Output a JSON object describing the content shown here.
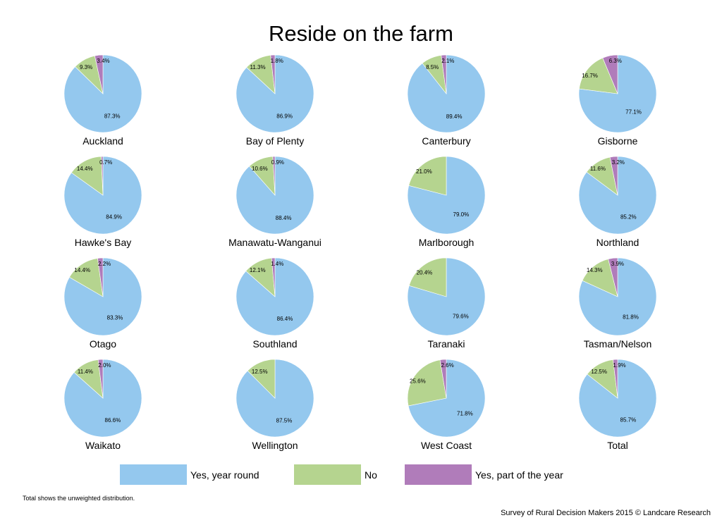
{
  "chart_data": {
    "type": "pie",
    "title": "Reside on the farm",
    "categories": [
      "Yes, year round",
      "No",
      "Yes, part of the year"
    ],
    "colors": [
      "#94c8ee",
      "#b5d48f",
      "#b07cba"
    ],
    "legend_position": "bottom",
    "pies": [
      {
        "name": "Auckland",
        "values": [
          87.3,
          9.3,
          3.4
        ],
        "labels": [
          "87.3%",
          "9.3%",
          "3.4%"
        ]
      },
      {
        "name": "Bay of Plenty",
        "values": [
          86.9,
          11.3,
          1.8
        ],
        "labels": [
          "86.9%",
          "11.3%",
          "1.8%"
        ]
      },
      {
        "name": "Canterbury",
        "values": [
          89.4,
          8.5,
          2.1
        ],
        "labels": [
          "89.4%",
          "8.5%",
          "2.1%"
        ]
      },
      {
        "name": "Gisborne",
        "values": [
          77.1,
          16.7,
          6.3
        ],
        "labels": [
          "77.1%",
          "16.7%",
          "6.3%"
        ]
      },
      {
        "name": "Hawke's Bay",
        "values": [
          84.9,
          14.4,
          0.7
        ],
        "labels": [
          "84.9%",
          "14.4%",
          "0.7%"
        ]
      },
      {
        "name": "Manawatu-Wanganui",
        "values": [
          88.4,
          10.6,
          0.9
        ],
        "labels": [
          "88.4%",
          "10.6%",
          "0.9%"
        ]
      },
      {
        "name": "Marlborough",
        "values": [
          79.0,
          21.0,
          0
        ],
        "labels": [
          "79.0%",
          "21.0%",
          ""
        ]
      },
      {
        "name": "Northland",
        "values": [
          85.2,
          11.6,
          3.2
        ],
        "labels": [
          "85.2%",
          "11.6%",
          "3.2%"
        ]
      },
      {
        "name": "Otago",
        "values": [
          83.3,
          14.4,
          2.2
        ],
        "labels": [
          "83.3%",
          "14.4%",
          "2.2%"
        ]
      },
      {
        "name": "Southland",
        "values": [
          86.4,
          12.1,
          1.4
        ],
        "labels": [
          "86.4%",
          "12.1%",
          "1.4%"
        ]
      },
      {
        "name": "Taranaki",
        "values": [
          79.6,
          20.4,
          0
        ],
        "labels": [
          "79.6%",
          "20.4%",
          ""
        ]
      },
      {
        "name": "Tasman/Nelson",
        "values": [
          81.8,
          14.3,
          3.9
        ],
        "labels": [
          "81.8%",
          "14.3%",
          "3.9%"
        ]
      },
      {
        "name": "Waikato",
        "values": [
          86.6,
          11.4,
          2.0
        ],
        "labels": [
          "86.6%",
          "11.4%",
          "2.0%"
        ]
      },
      {
        "name": "Wellington",
        "values": [
          87.5,
          12.5,
          0
        ],
        "labels": [
          "87.5%",
          "12.5%",
          ""
        ]
      },
      {
        "name": "West Coast",
        "values": [
          71.8,
          25.6,
          2.6
        ],
        "labels": [
          "71.8%",
          "25.6%",
          "2.6%"
        ]
      },
      {
        "name": "Total",
        "values": [
          85.7,
          12.5,
          1.9
        ],
        "labels": [
          "85.7%",
          "12.5%",
          "1.9%"
        ]
      }
    ]
  },
  "footnote": "Total shows the unweighted distribution.",
  "credit": "Survey of Rural Decision Makers 2015 © Landcare Research"
}
